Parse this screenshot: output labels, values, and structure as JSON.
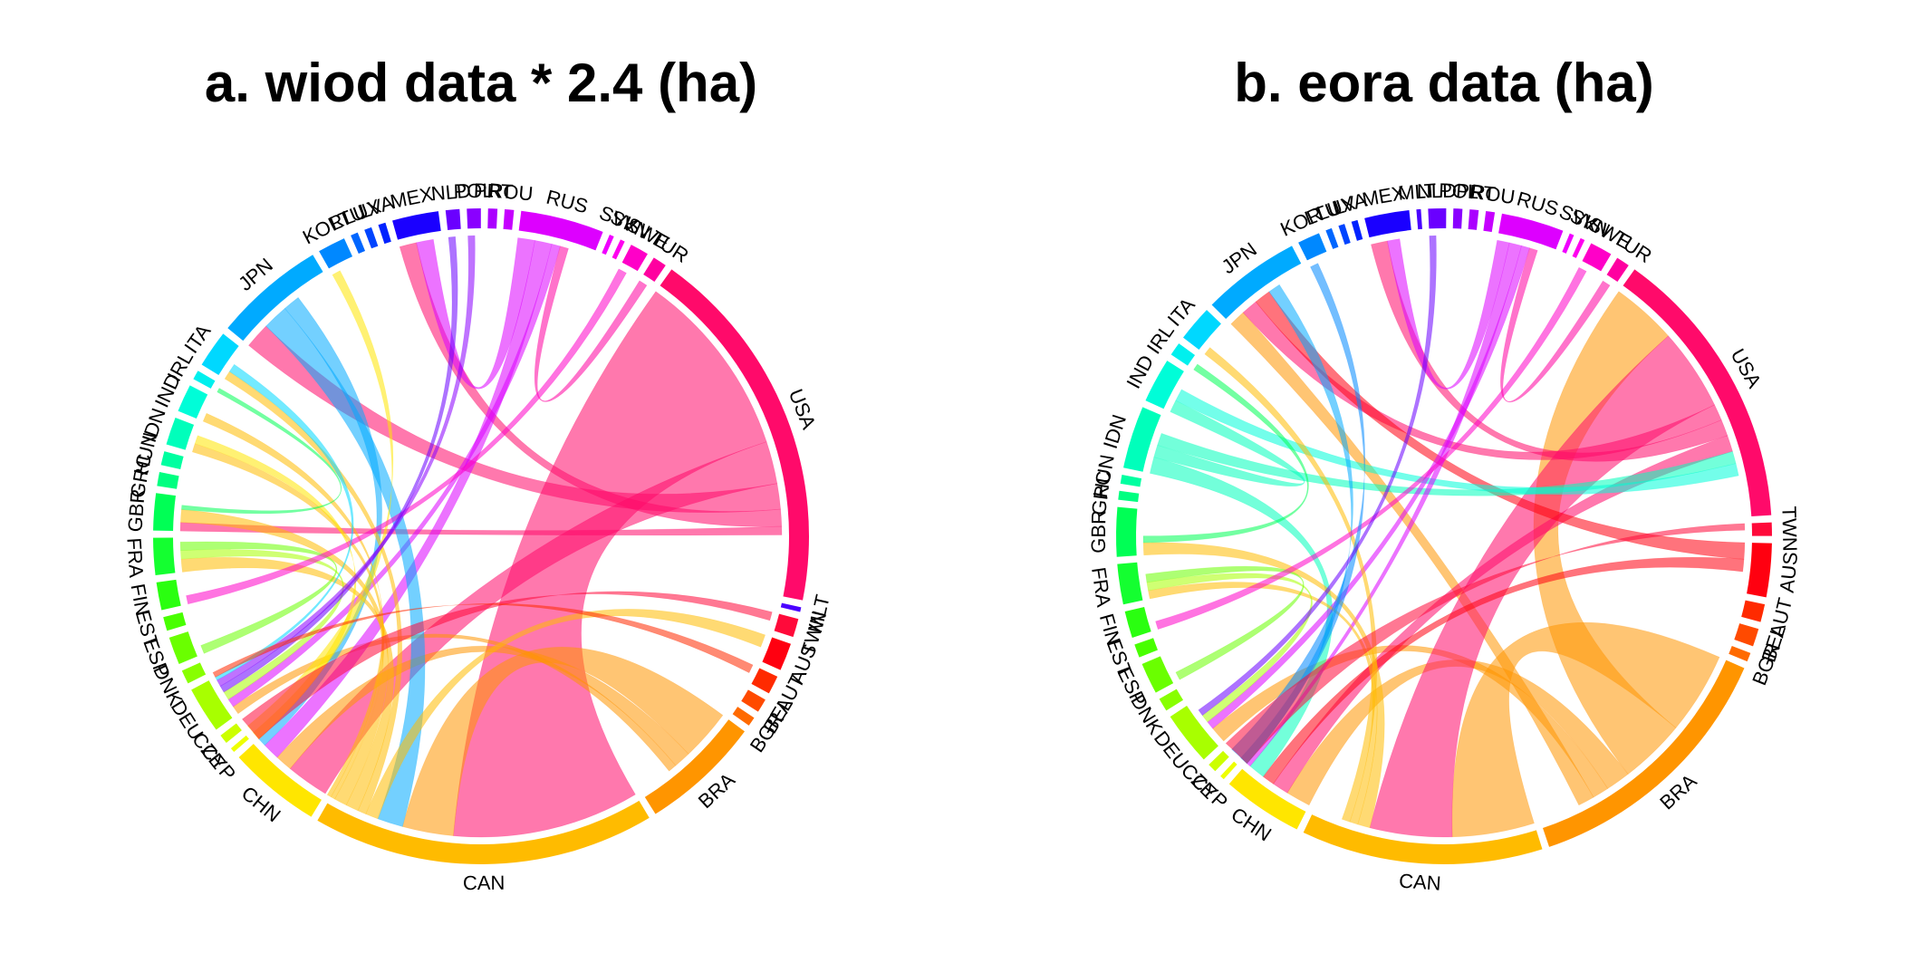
{
  "colors": {
    "USA": "#ff0a6a",
    "TWN": "#ff0a3a",
    "AUS": "#ff0010",
    "AUT": "#ff2a00",
    "BEL": "#ff4a00",
    "BGR": "#ff6a00",
    "BRA": "#ff9500",
    "CAN": "#ffbb00",
    "CHN": "#ffe600",
    "CYP": "#eeff00",
    "CZE": "#ccff00",
    "DEU": "#a8ff00",
    "DNK": "#88ff00",
    "ESP": "#6aff00",
    "EST": "#48ff00",
    "FIN": "#2aff10",
    "FRA": "#14ff30",
    "GBR": "#00ff55",
    "GRC": "#00ff80",
    "HUN": "#00ffa0",
    "IDN": "#00ffbb",
    "IND": "#00fdd8",
    "IRL": "#00f0ee",
    "ITA": "#00d8ff",
    "JPN": "#00aaff",
    "KOR": "#0088ff",
    "LTU": "#0066ff",
    "LUX": "#0044ff",
    "LVA": "#0022ff",
    "MEX": "#1a00ff",
    "MLT": "#4a00ff",
    "NLD": "#6a00ff",
    "POL": "#8a00ff",
    "PRT": "#aa00ff",
    "ROU": "#c600ff",
    "RUS": "#dd00ff",
    "SVK": "#f000ff",
    "SVN": "#ff00ee",
    "SWE": "#ff00c8",
    "TUR": "#ff00a0"
  },
  "chart_data": [
    {
      "type": "chord",
      "title": "a. wiod data * 2.4 (ha)",
      "sectors": [
        "USA",
        "MLT",
        "TWN",
        "AUS",
        "AUT",
        "BEL",
        "BGR",
        "BRA",
        "CAN",
        "CHN",
        "CYP",
        "CZE",
        "DEU",
        "DNK",
        "ESP",
        "EST",
        "FIN",
        "FRA",
        "GBR",
        "GRC",
        "HUN",
        "IDN",
        "IND",
        "IRL",
        "ITA",
        "JPN",
        "KOR",
        "LTU",
        "LUX",
        "LVA",
        "MEX",
        "NLD",
        "POL",
        "PRT",
        "ROU",
        "RUS",
        "SVK",
        "SVN",
        "SWE",
        "TUR"
      ],
      "values": [
        40,
        0.5,
        2,
        3,
        2,
        1.5,
        1,
        13,
        37,
        10,
        0.5,
        1,
        5,
        1.5,
        3,
        1.5,
        3,
        4,
        4,
        1.5,
        1.5,
        3,
        3,
        1,
        4,
        12,
        3,
        0.8,
        0.8,
        0.8,
        5,
        1.5,
        1.5,
        1,
        1,
        9,
        0.5,
        0.5,
        2,
        1.5
      ],
      "flows": [
        {
          "from": "USA",
          "to": "CAN",
          "value": 22
        },
        {
          "from": "USA",
          "to": "CHN",
          "value": 5
        },
        {
          "from": "USA",
          "to": "JPN",
          "value": 3
        },
        {
          "from": "USA",
          "to": "MEX",
          "value": 2
        },
        {
          "from": "USA",
          "to": "GBR",
          "value": 1
        },
        {
          "from": "BRA",
          "to": "CAN",
          "value": 6
        },
        {
          "from": "BRA",
          "to": "CHN",
          "value": 2
        },
        {
          "from": "BRA",
          "to": "DEU",
          "value": 1
        },
        {
          "from": "RUS",
          "to": "MEX",
          "value": 2
        },
        {
          "from": "RUS",
          "to": "CHN",
          "value": 2
        },
        {
          "from": "RUS",
          "to": "DEU",
          "value": 1
        },
        {
          "from": "JPN",
          "to": "CAN",
          "value": 3
        },
        {
          "from": "JPN",
          "to": "CHN",
          "value": 2
        },
        {
          "from": "CAN",
          "to": "AUS",
          "value": 1.5
        },
        {
          "from": "CAN",
          "to": "ITA",
          "value": 1
        },
        {
          "from": "CAN",
          "to": "FRA",
          "value": 1.5
        },
        {
          "from": "CAN",
          "to": "GBR",
          "value": 1.5
        },
        {
          "from": "CAN",
          "to": "IDN",
          "value": 1
        },
        {
          "from": "CAN",
          "to": "IND",
          "value": 1
        },
        {
          "from": "CHN",
          "to": "IDN",
          "value": 1
        },
        {
          "from": "CHN",
          "to": "KOR",
          "value": 1
        },
        {
          "from": "DEU",
          "to": "FRA",
          "value": 1
        },
        {
          "from": "ESP",
          "to": "FRA",
          "value": 1
        },
        {
          "from": "TUR",
          "to": "RUS",
          "value": 1
        },
        {
          "from": "SWE",
          "to": "FIN",
          "value": 1
        },
        {
          "from": "NLD",
          "to": "DEU",
          "value": 0.8
        },
        {
          "from": "POL",
          "to": "DEU",
          "value": 0.8
        },
        {
          "from": "ITA",
          "to": "DEU",
          "value": 1
        },
        {
          "from": "GBR",
          "to": "IRL",
          "value": 0.5
        },
        {
          "from": "TWN",
          "to": "CHN",
          "value": 1
        },
        {
          "from": "AUT",
          "to": "DEU",
          "value": 1
        }
      ]
    },
    {
      "type": "chord",
      "title": "b. eora data (ha)",
      "sectors": [
        "USA",
        "TWN",
        "AUS",
        "AUT",
        "BEL",
        "BGR",
        "BRA",
        "CAN",
        "CHN",
        "CYP",
        "CZE",
        "DEU",
        "DNK",
        "ESP",
        "EST",
        "FIN",
        "FRA",
        "GBR",
        "GRC",
        "HUN",
        "IDN",
        "IND",
        "IRL",
        "ITA",
        "JPN",
        "KOR",
        "LTU",
        "LUX",
        "LVA",
        "MEX",
        "MLT",
        "NLD",
        "POL",
        "PRT",
        "ROU",
        "RUS",
        "SVK",
        "SVN",
        "SWE",
        "TUR"
      ],
      "values": [
        32,
        1.5,
        6,
        2,
        2,
        1,
        30,
        27,
        9,
        0.5,
        1,
        6,
        1.5,
        3.5,
        1.5,
        3,
        4.5,
        5.5,
        1,
        1,
        7,
        5,
        1.5,
        4,
        11,
        2.5,
        0.7,
        0.7,
        0.7,
        5,
        0.5,
        2,
        1,
        1,
        1,
        7,
        0.5,
        0.5,
        2.5,
        1.5
      ],
      "flows": [
        {
          "from": "BRA",
          "to": "CAN",
          "value": 10
        },
        {
          "from": "BRA",
          "to": "USA",
          "value": 8
        },
        {
          "from": "BRA",
          "to": "CHN",
          "value": 3
        },
        {
          "from": "BRA",
          "to": "DEU",
          "value": 2
        },
        {
          "from": "BRA",
          "to": "JPN",
          "value": 2
        },
        {
          "from": "USA",
          "to": "CAN",
          "value": 10
        },
        {
          "from": "USA",
          "to": "JPN",
          "value": 2
        },
        {
          "from": "USA",
          "to": "MEX",
          "value": 2
        },
        {
          "from": "USA",
          "to": "CHN",
          "value": 2
        },
        {
          "from": "AUS",
          "to": "JPN",
          "value": 2
        },
        {
          "from": "AUS",
          "to": "CHN",
          "value": 1.5
        },
        {
          "from": "IDN",
          "to": "CHN",
          "value": 2
        },
        {
          "from": "IDN",
          "to": "IND",
          "value": 1.5
        },
        {
          "from": "IDN",
          "to": "USA",
          "value": 1.5
        },
        {
          "from": "IND",
          "to": "USA",
          "value": 1.5
        },
        {
          "from": "RUS",
          "to": "MEX",
          "value": 1.5
        },
        {
          "from": "RUS",
          "to": "CHN",
          "value": 1.5
        },
        {
          "from": "RUS",
          "to": "DEU",
          "value": 1
        },
        {
          "from": "CAN",
          "to": "GBR",
          "value": 1.5
        },
        {
          "from": "CAN",
          "to": "FRA",
          "value": 1
        },
        {
          "from": "CAN",
          "to": "ITA",
          "value": 1
        },
        {
          "from": "JPN",
          "to": "CHN",
          "value": 1.5
        },
        {
          "from": "DEU",
          "to": "FRA",
          "value": 1
        },
        {
          "from": "ESP",
          "to": "FRA",
          "value": 1
        },
        {
          "from": "SWE",
          "to": "FIN",
          "value": 1
        },
        {
          "from": "TUR",
          "to": "RUS",
          "value": 1
        },
        {
          "from": "KOR",
          "to": "CHN",
          "value": 1
        },
        {
          "from": "NLD",
          "to": "DEU",
          "value": 0.8
        },
        {
          "from": "GBR",
          "to": "IRL",
          "value": 0.8
        },
        {
          "from": "TWN",
          "to": "CHN",
          "value": 0.8
        }
      ]
    }
  ]
}
